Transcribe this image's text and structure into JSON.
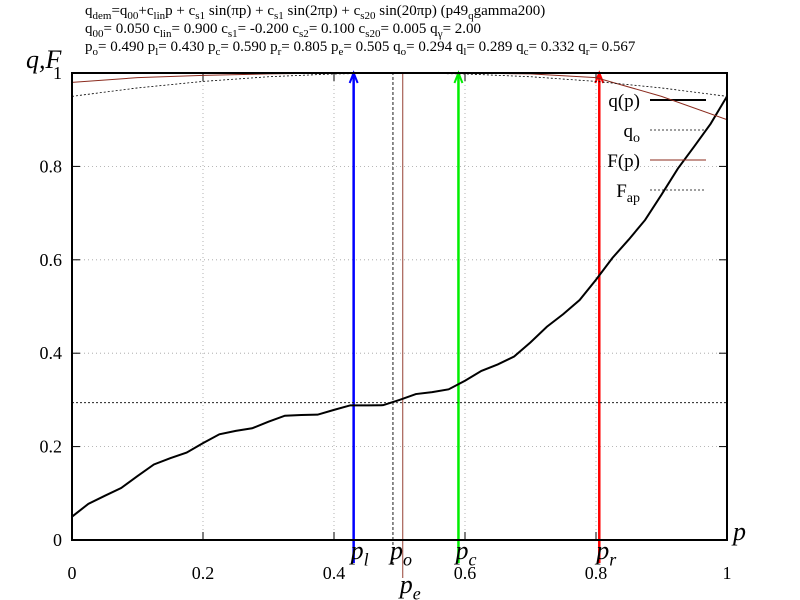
{
  "chart_data": {
    "type": "line",
    "title_lines": [
      [
        "q",
        {
          "text": "dem",
          "sub": true
        },
        "=q",
        {
          "text": "00",
          "sub": true
        },
        "+c",
        {
          "text": "lin",
          "sub": true
        },
        "p + c",
        {
          "text": "s1",
          "sub": true
        },
        " sin(πp) + c",
        {
          "text": "s1",
          "sub": true
        },
        " sin(2πp) +  c",
        {
          "text": "s20",
          "sub": true
        },
        " sin(20πp) (p49",
        {
          "text": "q",
          "sub": true
        },
        "gamma200)"
      ],
      [
        "q",
        {
          "text": "00",
          "sub": true
        },
        "= 0.050 c",
        {
          "text": "lin",
          "sub": true
        },
        "= 0.900 c",
        {
          "text": "s1",
          "sub": true
        },
        "= -0.200 c",
        {
          "text": "s2",
          "sub": true
        },
        "= 0.100 c",
        {
          "text": "s20",
          "sub": true
        },
        "= 0.005 q",
        {
          "text": "γ",
          "sub": true
        },
        "= 2.00"
      ],
      [
        "p",
        {
          "text": "o",
          "sub": true
        },
        "= 0.490 p",
        {
          "text": "l",
          "sub": true
        },
        "= 0.430 p",
        {
          "text": "c",
          "sub": true
        },
        "= 0.590 p",
        {
          "text": "r",
          "sub": true
        },
        "= 0.805 p",
        {
          "text": "e",
          "sub": true
        },
        "= 0.505 q",
        {
          "text": "o",
          "sub": true
        },
        "= 0.294 q",
        {
          "text": "l",
          "sub": true
        },
        "= 0.289 q",
        {
          "text": "c",
          "sub": true
        },
        "= 0.332 q",
        {
          "text": "r",
          "sub": true
        },
        "= 0.567"
      ]
    ],
    "x_label": "p",
    "y_label": "q,F",
    "xlim": [
      0,
      1
    ],
    "ylim": [
      0,
      1
    ],
    "xticks": [
      0,
      0.2,
      0.4,
      0.6,
      0.8,
      1
    ],
    "yticks": [
      0,
      0.2,
      0.4,
      0.6,
      0.8,
      1
    ],
    "grid": true,
    "legend": "top-right",
    "series": [
      {
        "name": "q(p)",
        "color": "#000000",
        "width": 2,
        "dash": false,
        "x": [
          0,
          0.025,
          0.05,
          0.075,
          0.1,
          0.125,
          0.15,
          0.175,
          0.2,
          0.225,
          0.25,
          0.275,
          0.3,
          0.325,
          0.35,
          0.375,
          0.4,
          0.425,
          0.45,
          0.475,
          0.5,
          0.525,
          0.55,
          0.575,
          0.6,
          0.625,
          0.65,
          0.675,
          0.7,
          0.725,
          0.75,
          0.775,
          0.8,
          0.825,
          0.85,
          0.875,
          0.9,
          0.925,
          0.95,
          0.975,
          1
        ],
        "values": [
          0.05,
          0.0774,
          0.0946,
          0.1112,
          0.137,
          0.1617,
          0.1751,
          0.1871,
          0.2075,
          0.2264,
          0.2336,
          0.2392,
          0.2533,
          0.2661,
          0.2677,
          0.2684,
          0.2786,
          0.2884,
          0.2884,
          0.2887,
          0.3,
          0.3125,
          0.3166,
          0.3226,
          0.341,
          0.362,
          0.3759,
          0.3929,
          0.4231,
          0.4566,
          0.4836,
          0.5138,
          0.5573,
          0.6039,
          0.6433,
          0.6853,
          0.7394,
          0.7954,
          0.8428,
          0.8912,
          0.95
        ]
      },
      {
        "name": [
          "q",
          {
            "text": "o",
            "sub": true
          }
        ],
        "color": "#000000",
        "width": 0.8,
        "dash": true,
        "x": [
          0,
          1
        ],
        "values": [
          0.294,
          0.294
        ]
      },
      {
        "name": "F(p)",
        "color": "#8b2b1e",
        "width": 1,
        "dash": false,
        "x": [
          0,
          0.1,
          0.2,
          0.3,
          0.4,
          0.5,
          0.6,
          0.7,
          0.8,
          0.9,
          1
        ],
        "values": [
          0.98,
          0.99,
          0.995,
          0.998,
          1,
          1,
          1,
          0.998,
          0.99,
          0.95,
          0.9
        ]
      },
      {
        "name": [
          "F",
          {
            "text": "ap",
            "sub": true
          }
        ],
        "color": "#000000",
        "width": 0.8,
        "dash": true,
        "x": [
          0,
          0.1,
          0.2,
          0.3,
          0.4,
          0.5,
          0.6,
          0.7,
          0.8,
          0.9,
          1
        ],
        "values": [
          0.95,
          0.968,
          0.982,
          0.992,
          0.998,
          1,
          0.998,
          0.992,
          0.982,
          0.968,
          0.95
        ]
      }
    ],
    "markers": [
      {
        "label": [
          "p",
          {
            "text": "l",
            "sub": true
          }
        ],
        "x": 0.43,
        "color": "#0000ff",
        "style": "arrow"
      },
      {
        "label": [
          "p",
          {
            "text": "o",
            "sub": true
          }
        ],
        "x": 0.49,
        "color": "#000000",
        "style": "dashed"
      },
      {
        "label": [
          "p",
          {
            "text": "e",
            "sub": true
          }
        ],
        "x": 0.505,
        "color": "#8b2b1e",
        "style": "line"
      },
      {
        "label": [
          "p",
          {
            "text": "c",
            "sub": true
          }
        ],
        "x": 0.59,
        "color": "#00ee00",
        "style": "arrow"
      },
      {
        "label": [
          "p",
          {
            "text": "r",
            "sub": true
          }
        ],
        "x": 0.805,
        "color": "#ff0000",
        "style": "arrow"
      }
    ]
  }
}
